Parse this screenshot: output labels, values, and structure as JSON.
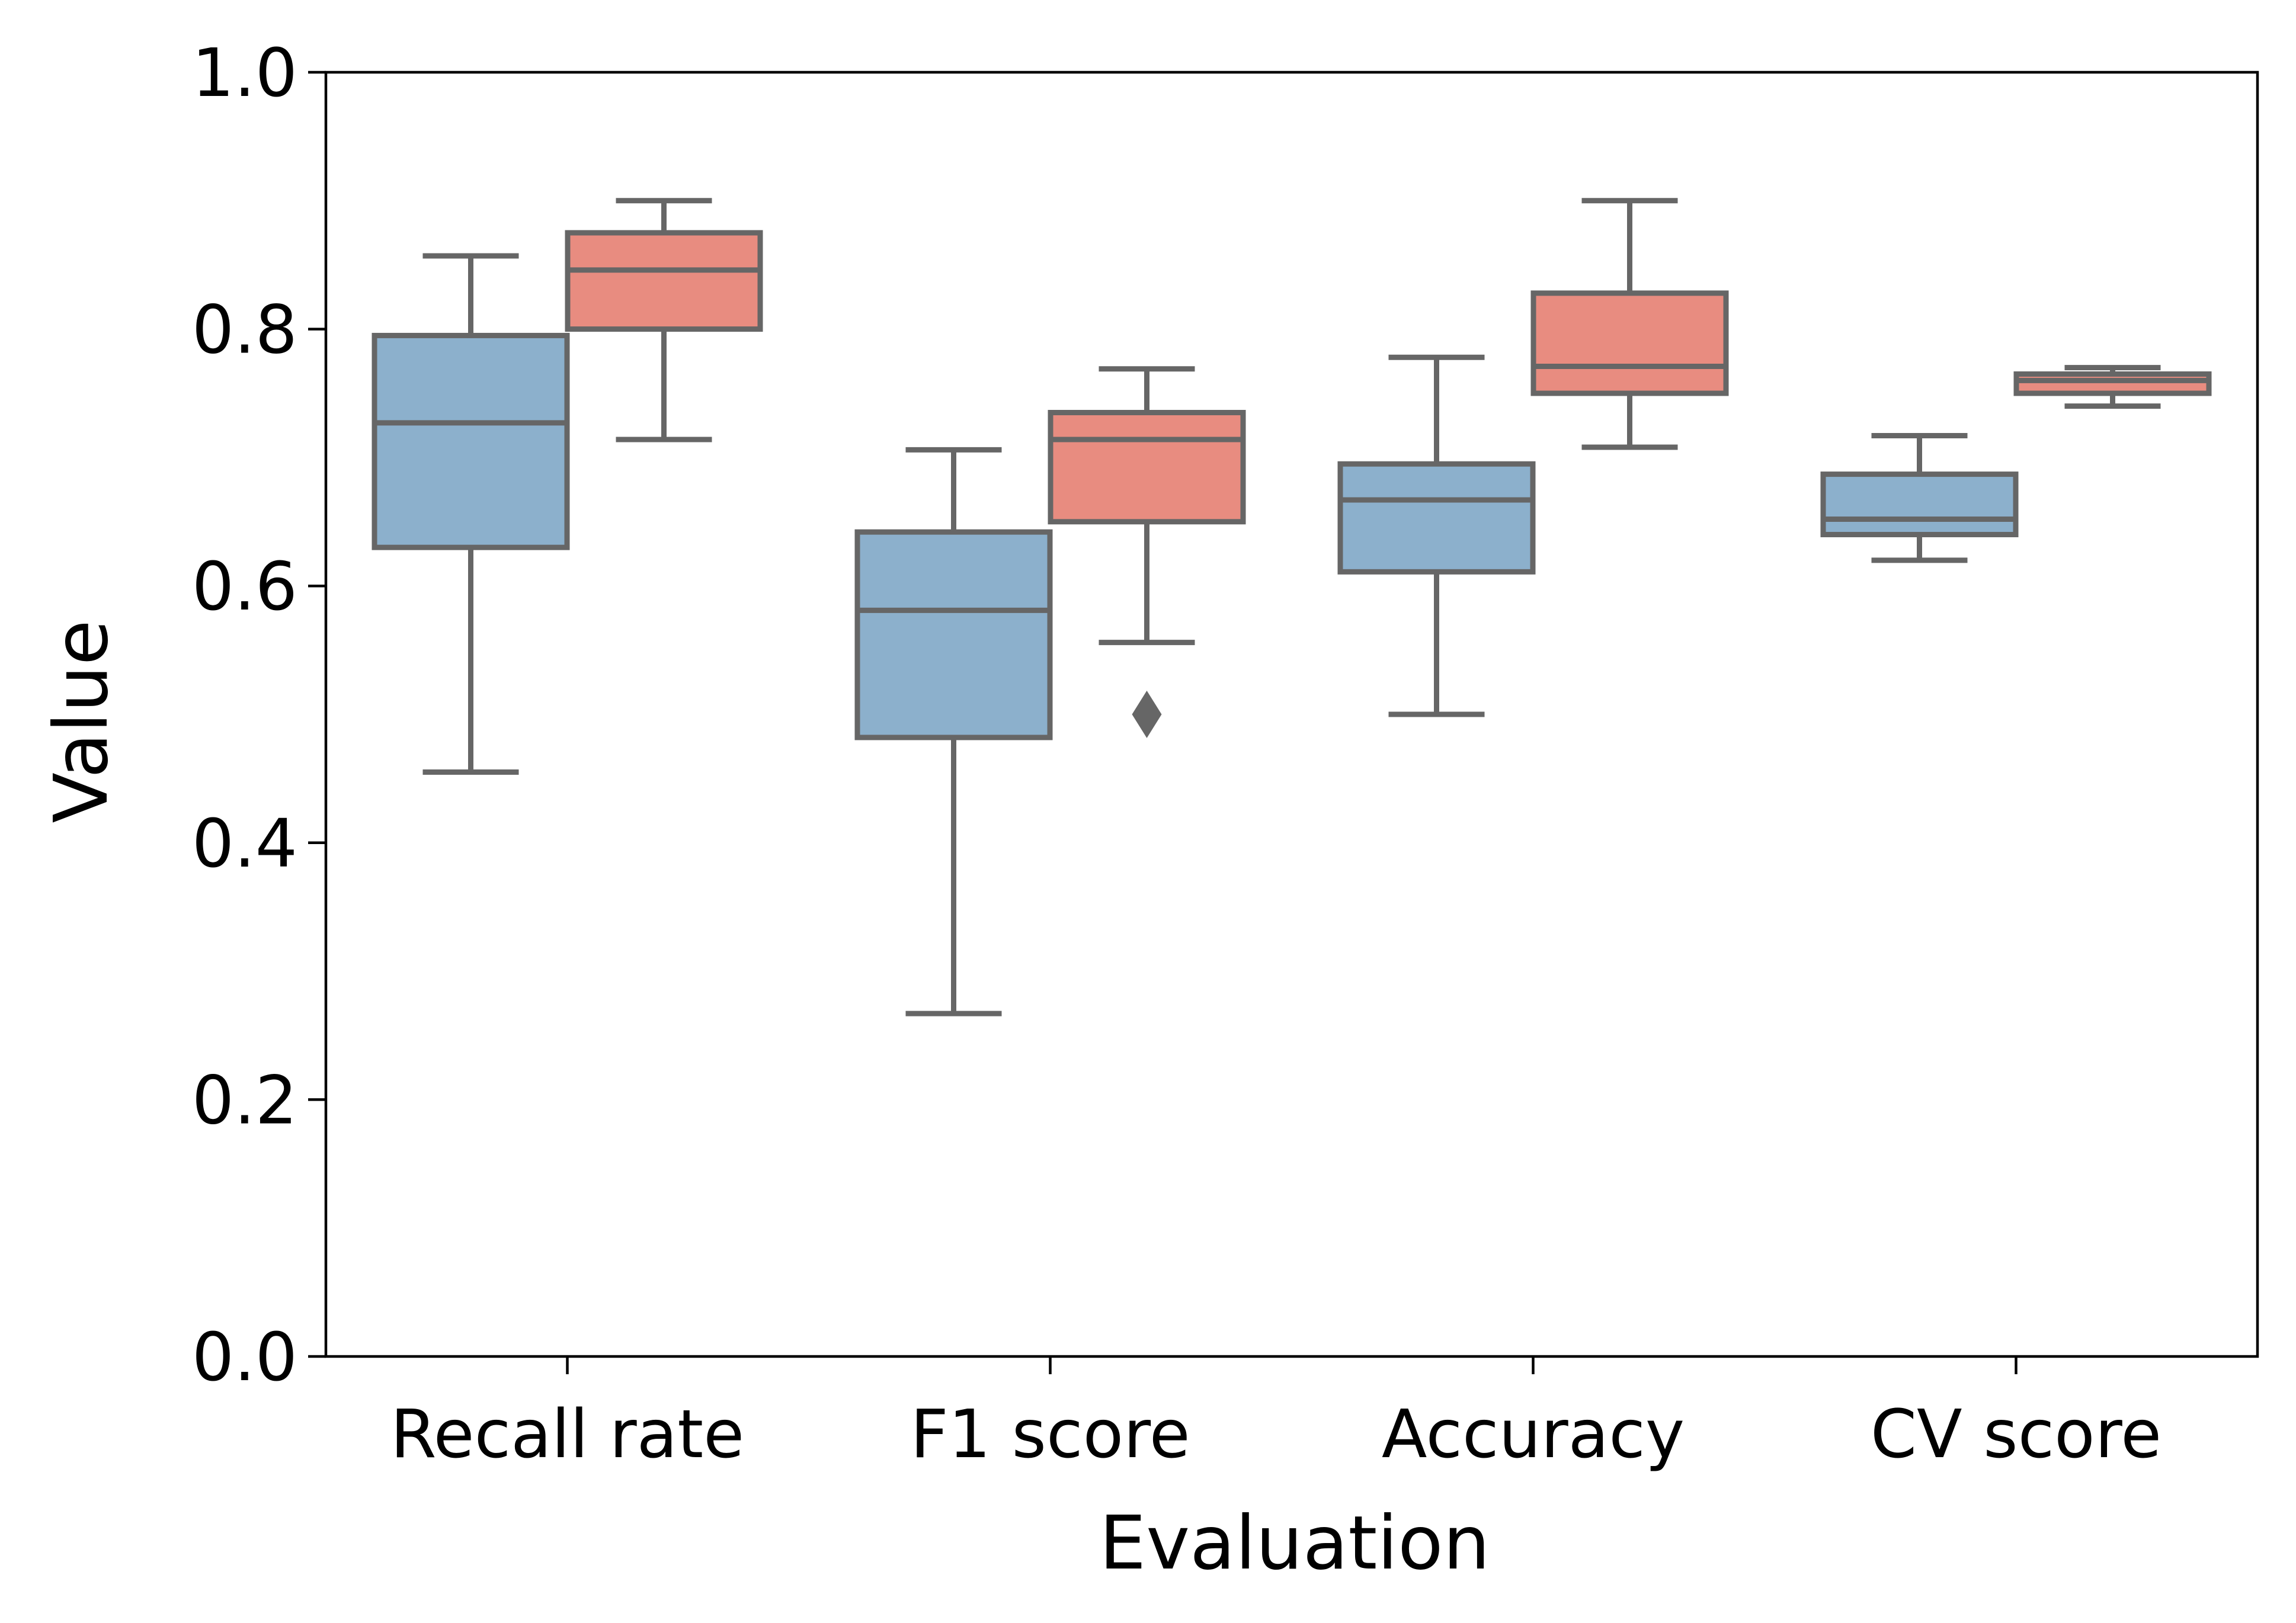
{
  "chart_data": {
    "type": "box",
    "xlabel": "Evaluation",
    "ylabel": "Value",
    "ylim": [
      0.0,
      1.0
    ],
    "yticks": [
      "0.0",
      "0.2",
      "0.4",
      "0.6",
      "0.8",
      "1.0"
    ],
    "categories": [
      "Recall rate",
      "F1 score",
      "Accuracy",
      "CV score"
    ],
    "grid": false,
    "legend": "none",
    "box_edge_color": "#666666",
    "series": [
      {
        "color": "#8cb0cc",
        "boxes": [
          {
            "whisker_low": 0.455,
            "q1": 0.63,
            "median": 0.727,
            "q3": 0.795,
            "whisker_high": 0.857,
            "outliers": []
          },
          {
            "whisker_low": 0.267,
            "q1": 0.482,
            "median": 0.581,
            "q3": 0.642,
            "whisker_high": 0.706,
            "outliers": []
          },
          {
            "whisker_low": 0.5,
            "q1": 0.611,
            "median": 0.667,
            "q3": 0.695,
            "whisker_high": 0.778,
            "outliers": []
          },
          {
            "whisker_low": 0.62,
            "q1": 0.64,
            "median": 0.652,
            "q3": 0.687,
            "whisker_high": 0.717,
            "outliers": []
          }
        ]
      },
      {
        "color": "#e88c80",
        "boxes": [
          {
            "whisker_low": 0.714,
            "q1": 0.8,
            "median": 0.846,
            "q3": 0.875,
            "whisker_high": 0.9,
            "outliers": []
          },
          {
            "whisker_low": 0.556,
            "q1": 0.65,
            "median": 0.714,
            "q3": 0.735,
            "whisker_high": 0.769,
            "outliers": [
              0.5
            ]
          },
          {
            "whisker_low": 0.708,
            "q1": 0.75,
            "median": 0.771,
            "q3": 0.828,
            "whisker_high": 0.9,
            "outliers": []
          },
          {
            "whisker_low": 0.74,
            "q1": 0.75,
            "median": 0.76,
            "q3": 0.765,
            "whisker_high": 0.77,
            "outliers": []
          }
        ]
      }
    ]
  }
}
